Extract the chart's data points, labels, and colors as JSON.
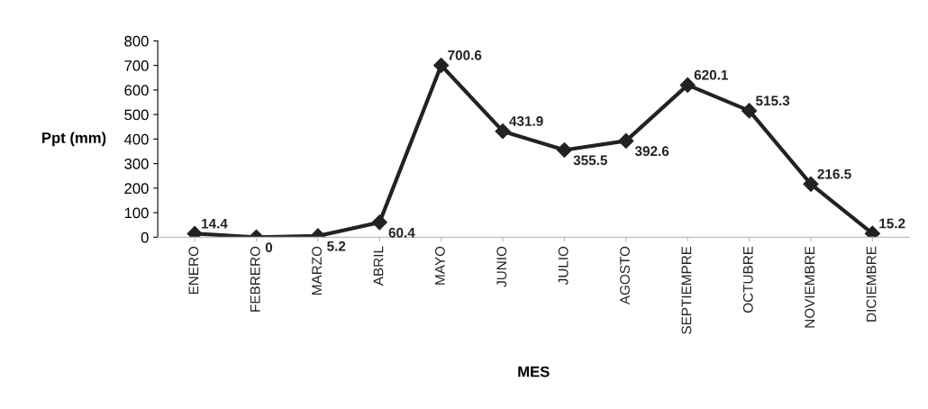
{
  "chart_data": {
    "type": "line",
    "xlabel": "MES",
    "ylabel": "Ppt (mm)",
    "categories": [
      "ENERO",
      "FEBRERO",
      "MARZO",
      "ABRIL",
      "MAYO",
      "JUNIO",
      "JULIO",
      "AGOSTO",
      "SEPTIEMPRE",
      "OCTUBRE",
      "NOVIEMBRE",
      "DICIEMBRE"
    ],
    "values": [
      14.4,
      0,
      5.2,
      60.4,
      700.6,
      431.9,
      355.5,
      392.6,
      620.1,
      515.3,
      216.5,
      15.2
    ],
    "color": "#222222",
    "marker": "diamond",
    "line_style": "solid",
    "data_labels": true,
    "grid": false,
    "legend": false,
    "ylim": [
      0,
      800
    ],
    "yticks": [
      0,
      100,
      200,
      300,
      400,
      500,
      600,
      700,
      800
    ]
  }
}
